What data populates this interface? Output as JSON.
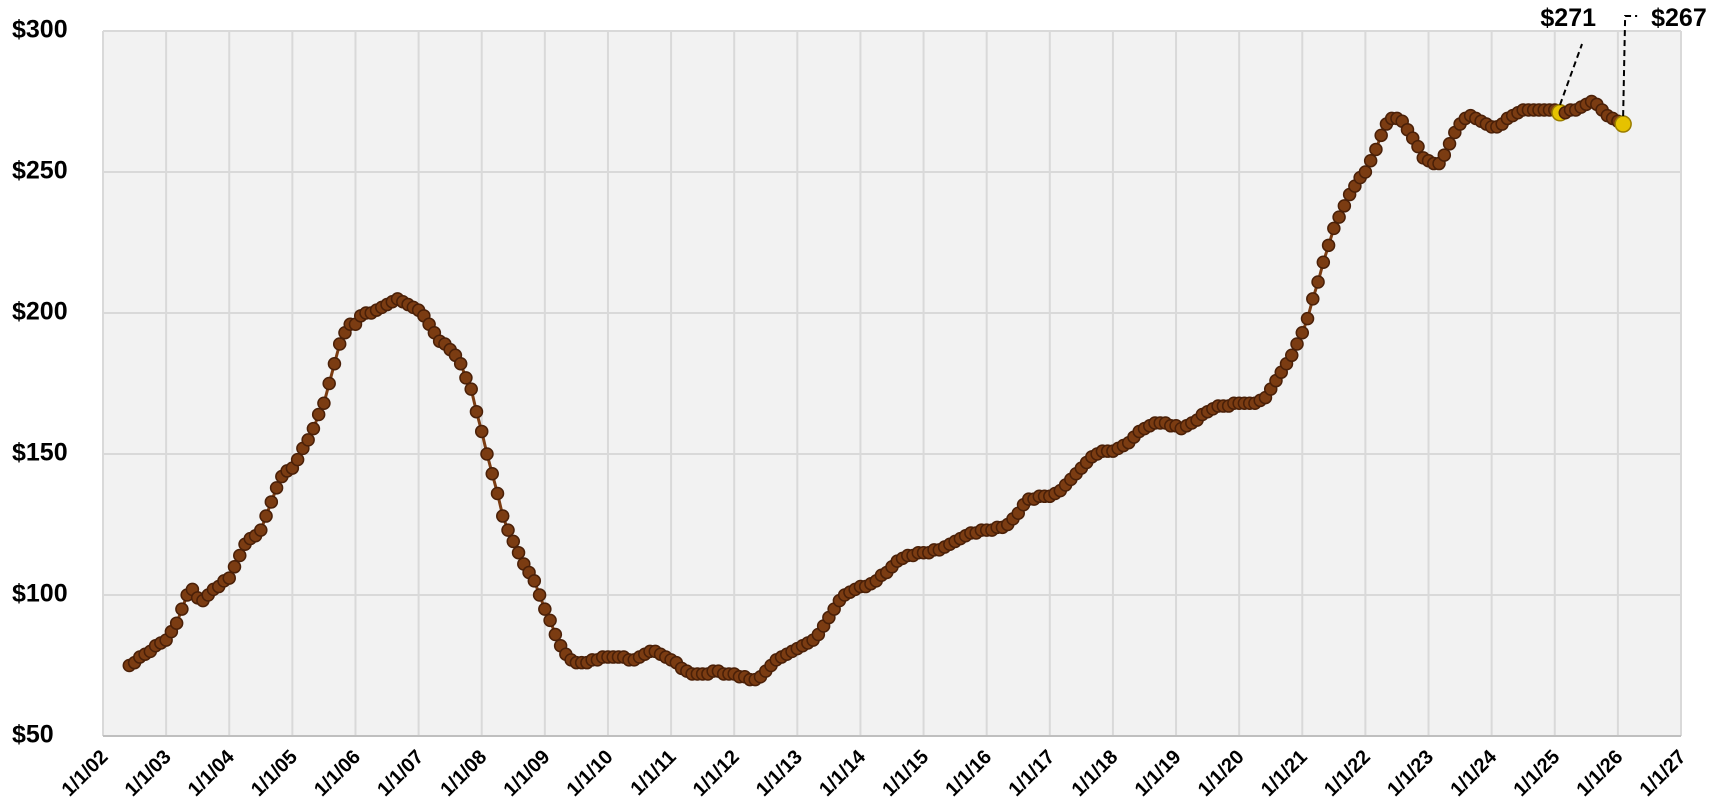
{
  "chart_data": {
    "type": "line",
    "x": [
      "2002-06",
      "2002-07",
      "2002-08",
      "2002-09",
      "2002-10",
      "2002-11",
      "2002-12",
      "2003-01",
      "2003-02",
      "2003-03",
      "2003-04",
      "2003-05",
      "2003-06",
      "2003-07",
      "2003-08",
      "2003-09",
      "2003-10",
      "2003-11",
      "2003-12",
      "2004-01",
      "2004-02",
      "2004-03",
      "2004-04",
      "2004-05",
      "2004-06",
      "2004-07",
      "2004-08",
      "2004-09",
      "2004-10",
      "2004-11",
      "2004-12",
      "2005-01",
      "2005-02",
      "2005-03",
      "2005-04",
      "2005-05",
      "2005-06",
      "2005-07",
      "2005-08",
      "2005-09",
      "2005-10",
      "2005-11",
      "2005-12",
      "2006-01",
      "2006-02",
      "2006-03",
      "2006-04",
      "2006-05",
      "2006-06",
      "2006-07",
      "2006-08",
      "2006-09",
      "2006-10",
      "2006-11",
      "2006-12",
      "2007-01",
      "2007-02",
      "2007-03",
      "2007-04",
      "2007-05",
      "2007-06",
      "2007-07",
      "2007-08",
      "2007-09",
      "2007-10",
      "2007-11",
      "2007-12",
      "2008-01",
      "2008-02",
      "2008-03",
      "2008-04",
      "2008-05",
      "2008-06",
      "2008-07",
      "2008-08",
      "2008-09",
      "2008-10",
      "2008-11",
      "2008-12",
      "2009-01",
      "2009-02",
      "2009-03",
      "2009-04",
      "2009-05",
      "2009-06",
      "2009-07",
      "2009-08",
      "2009-09",
      "2009-10",
      "2009-11",
      "2009-12",
      "2010-01",
      "2010-02",
      "2010-03",
      "2010-04",
      "2010-05",
      "2010-06",
      "2010-07",
      "2010-08",
      "2010-09",
      "2010-10",
      "2010-11",
      "2010-12",
      "2011-01",
      "2011-02",
      "2011-03",
      "2011-04",
      "2011-05",
      "2011-06",
      "2011-07",
      "2011-08",
      "2011-09",
      "2011-10",
      "2011-11",
      "2011-12",
      "2012-01",
      "2012-02",
      "2012-03",
      "2012-04",
      "2012-05",
      "2012-06",
      "2012-07",
      "2012-08",
      "2012-09",
      "2012-10",
      "2012-11",
      "2012-12",
      "2013-01",
      "2013-02",
      "2013-03",
      "2013-04",
      "2013-05",
      "2013-06",
      "2013-07",
      "2013-08",
      "2013-09",
      "2013-10",
      "2013-11",
      "2013-12",
      "2014-01",
      "2014-02",
      "2014-03",
      "2014-04",
      "2014-05",
      "2014-06",
      "2014-07",
      "2014-08",
      "2014-09",
      "2014-10",
      "2014-11",
      "2014-12",
      "2015-01",
      "2015-02",
      "2015-03",
      "2015-04",
      "2015-05",
      "2015-06",
      "2015-07",
      "2015-08",
      "2015-09",
      "2015-10",
      "2015-11",
      "2015-12",
      "2016-01",
      "2016-02",
      "2016-03",
      "2016-04",
      "2016-05",
      "2016-06",
      "2016-07",
      "2016-08",
      "2016-09",
      "2016-10",
      "2016-11",
      "2016-12",
      "2017-01",
      "2017-02",
      "2017-03",
      "2017-04",
      "2017-05",
      "2017-06",
      "2017-07",
      "2017-08",
      "2017-09",
      "2017-10",
      "2017-11",
      "2017-12",
      "2018-01",
      "2018-02",
      "2018-03",
      "2018-04",
      "2018-05",
      "2018-06",
      "2018-07",
      "2018-08",
      "2018-09",
      "2018-10",
      "2018-11",
      "2018-12",
      "2019-01",
      "2019-02",
      "2019-03",
      "2019-04",
      "2019-05",
      "2019-06",
      "2019-07",
      "2019-08",
      "2019-09",
      "2019-10",
      "2019-11",
      "2019-12",
      "2020-01",
      "2020-02",
      "2020-03",
      "2020-04",
      "2020-05",
      "2020-06",
      "2020-07",
      "2020-08",
      "2020-09",
      "2020-10",
      "2020-11",
      "2020-12",
      "2021-01",
      "2021-02",
      "2021-03",
      "2021-04",
      "2021-05",
      "2021-06",
      "2021-07",
      "2021-08",
      "2021-09",
      "2021-10",
      "2021-11",
      "2021-12",
      "2022-01",
      "2022-02",
      "2022-03",
      "2022-04",
      "2022-05",
      "2022-06",
      "2022-07",
      "2022-08",
      "2022-09",
      "2022-10",
      "2022-11",
      "2022-12",
      "2023-01",
      "2023-02",
      "2023-03",
      "2023-04",
      "2023-05",
      "2023-06",
      "2023-07",
      "2023-08",
      "2023-09",
      "2023-10",
      "2023-11",
      "2023-12",
      "2024-01",
      "2024-02",
      "2024-03",
      "2024-04",
      "2024-05",
      "2024-06",
      "2024-07",
      "2024-08",
      "2024-09",
      "2024-10",
      "2024-11",
      "2024-12",
      "2025-01",
      "2025-02",
      "2025-03",
      "2025-04",
      "2025-05",
      "2025-06",
      "2025-07",
      "2025-08",
      "2025-09",
      "2025-10",
      "2025-11",
      "2025-12",
      "2026-01",
      "2026-02"
    ],
    "values": [
      75,
      76,
      78,
      79,
      80,
      82,
      83,
      84,
      87,
      90,
      95,
      100,
      102,
      99,
      98,
      100,
      102,
      103,
      105,
      106,
      110,
      114,
      118,
      120,
      121,
      123,
      128,
      133,
      138,
      142,
      144,
      145,
      148,
      152,
      155,
      159,
      164,
      168,
      175,
      182,
      189,
      193,
      196,
      196,
      199,
      200,
      200,
      201,
      202,
      203,
      204,
      205,
      204,
      203,
      202,
      201,
      199,
      196,
      193,
      190,
      189,
      187,
      185,
      182,
      177,
      173,
      165,
      158,
      150,
      143,
      136,
      128,
      123,
      119,
      115,
      111,
      108,
      105,
      100,
      95,
      91,
      86,
      82,
      79,
      77,
      76,
      76,
      76,
      77,
      77,
      78,
      78,
      78,
      78,
      78,
      77,
      77,
      78,
      79,
      80,
      80,
      79,
      78,
      77,
      76,
      74,
      73,
      72,
      72,
      72,
      72,
      73,
      73,
      72,
      72,
      72,
      71,
      71,
      70,
      70,
      71,
      73,
      75,
      77,
      78,
      79,
      80,
      81,
      82,
      83,
      84,
      86,
      89,
      92,
      95,
      98,
      100,
      101,
      102,
      103,
      103,
      104,
      105,
      107,
      108,
      110,
      112,
      113,
      114,
      114,
      115,
      115,
      115,
      116,
      116,
      117,
      118,
      119,
      120,
      121,
      122,
      122,
      123,
      123,
      123,
      124,
      124,
      125,
      127,
      129,
      132,
      134,
      134,
      135,
      135,
      135,
      136,
      137,
      139,
      141,
      143,
      145,
      147,
      149,
      150,
      151,
      151,
      151,
      152,
      153,
      154,
      156,
      158,
      159,
      160,
      161,
      161,
      161,
      160,
      160,
      159,
      160,
      161,
      162,
      164,
      165,
      166,
      167,
      167,
      167,
      168,
      168,
      168,
      168,
      168,
      169,
      170,
      173,
      176,
      179,
      182,
      185,
      189,
      193,
      198,
      205,
      211,
      218,
      224,
      230,
      234,
      238,
      242,
      245,
      248,
      250,
      254,
      258,
      263,
      267,
      269,
      269,
      268,
      265,
      262,
      259,
      255,
      254,
      253,
      253,
      256,
      260,
      264,
      267,
      269,
      270,
      269,
      268,
      267,
      266,
      266,
      267,
      269,
      270,
      271,
      272,
      272,
      272,
      272,
      272,
      272,
      272,
      271,
      271,
      272,
      272,
      273,
      274,
      275,
      274,
      272,
      270,
      269,
      268,
      267
    ],
    "value_labels": [
      null,
      null,
      null,
      null,
      null,
      null,
      null,
      null,
      null,
      null,
      null,
      null,
      null,
      null,
      null,
      null,
      null,
      null,
      null,
      null,
      null,
      null,
      null,
      null,
      null,
      null,
      null,
      null,
      null,
      null,
      null,
      null,
      null,
      null,
      null,
      null,
      null,
      null,
      null,
      null,
      null,
      null,
      null,
      null,
      null,
      null,
      null,
      null,
      null,
      null,
      null,
      null,
      null,
      null,
      null,
      null,
      null,
      null,
      null,
      null,
      null,
      null,
      null,
      null,
      null,
      null,
      null,
      null,
      null,
      null,
      null,
      null,
      null,
      null,
      null,
      null,
      null,
      null,
      null,
      null,
      null,
      null,
      null,
      null,
      null,
      null,
      null,
      null,
      null,
      null,
      null,
      null,
      null,
      null,
      null,
      null,
      null,
      null,
      null,
      null,
      null,
      null,
      null,
      null,
      null,
      null,
      null,
      null,
      null,
      null,
      null,
      null,
      null,
      null,
      null,
      null,
      null,
      null,
      null,
      null,
      null,
      null,
      null,
      null,
      null,
      null,
      null,
      null,
      null,
      null,
      null,
      null,
      null,
      null,
      null,
      null,
      null,
      null,
      null,
      null,
      null,
      null,
      null,
      null,
      null,
      null,
      null,
      null,
      null,
      null,
      null,
      null,
      null,
      null,
      null,
      null,
      null,
      null,
      null,
      null,
      null,
      null,
      null,
      null,
      null,
      null,
      null,
      null,
      null,
      null,
      null,
      null,
      null,
      null,
      null,
      null,
      null,
      null,
      null,
      null,
      null,
      null,
      null,
      null,
      null,
      null,
      null,
      null,
      null,
      null,
      null,
      null,
      null,
      null,
      null,
      null,
      null,
      null,
      null,
      null,
      null,
      null,
      null,
      null,
      null,
      null,
      null,
      null,
      null,
      null,
      null,
      null,
      null,
      null,
      null,
      null,
      null,
      null,
      null,
      null,
      null,
      null,
      null,
      null,
      null,
      null,
      null,
      null,
      null,
      null,
      null,
      null,
      null,
      null,
      null,
      null,
      null,
      null,
      null,
      null,
      null,
      null,
      null,
      null,
      null,
      null,
      null,
      null,
      null,
      null,
      null,
      null,
      null,
      null,
      null,
      null,
      null,
      null,
      null,
      null,
      null,
      null,
      null,
      null,
      null,
      null,
      null,
      null,
      null,
      null,
      null,
      null,
      "$271",
      null,
      null,
      null,
      null,
      null,
      null,
      null,
      null,
      null,
      null,
      null,
      "$267"
    ],
    "color": "#7b3c12",
    "highlight_color": "#e6c200",
    "xlim": [
      "2002-01",
      "2027-01"
    ],
    "xticks": [
      {
        "value": "2002-01",
        "label": "1/1/02"
      },
      {
        "value": "2003-01",
        "label": "1/1/03"
      },
      {
        "value": "2004-01",
        "label": "1/1/04"
      },
      {
        "value": "2005-01",
        "label": "1/1/05"
      },
      {
        "value": "2006-01",
        "label": "1/1/06"
      },
      {
        "value": "2007-01",
        "label": "1/1/07"
      },
      {
        "value": "2008-01",
        "label": "1/1/08"
      },
      {
        "value": "2009-01",
        "label": "1/1/09"
      },
      {
        "value": "2010-01",
        "label": "1/1/10"
      },
      {
        "value": "2011-01",
        "label": "1/1/11"
      },
      {
        "value": "2012-01",
        "label": "1/1/12"
      },
      {
        "value": "2013-01",
        "label": "1/1/13"
      },
      {
        "value": "2014-01",
        "label": "1/1/14"
      },
      {
        "value": "2015-01",
        "label": "1/1/15"
      },
      {
        "value": "2016-01",
        "label": "1/1/16"
      },
      {
        "value": "2017-01",
        "label": "1/1/17"
      },
      {
        "value": "2018-01",
        "label": "1/1/18"
      },
      {
        "value": "2019-01",
        "label": "1/1/19"
      },
      {
        "value": "2020-01",
        "label": "1/1/20"
      },
      {
        "value": "2021-01",
        "label": "1/1/21"
      },
      {
        "value": "2022-01",
        "label": "1/1/22"
      },
      {
        "value": "2023-01",
        "label": "1/1/23"
      },
      {
        "value": "2024-01",
        "label": "1/1/24"
      },
      {
        "value": "2025-01",
        "label": "1/1/25"
      },
      {
        "value": "2026-01",
        "label": "1/1/26"
      },
      {
        "value": "2027-01",
        "label": "1/1/27"
      }
    ],
    "ylim": [
      50,
      300
    ],
    "yticks": [
      {
        "value": 50,
        "label": "$50"
      },
      {
        "value": 100,
        "label": "$100"
      },
      {
        "value": 150,
        "label": "$150"
      },
      {
        "value": 200,
        "label": "$200"
      },
      {
        "value": 250,
        "label": "$250"
      },
      {
        "value": 300,
        "label": "$300"
      }
    ],
    "grid": true
  }
}
